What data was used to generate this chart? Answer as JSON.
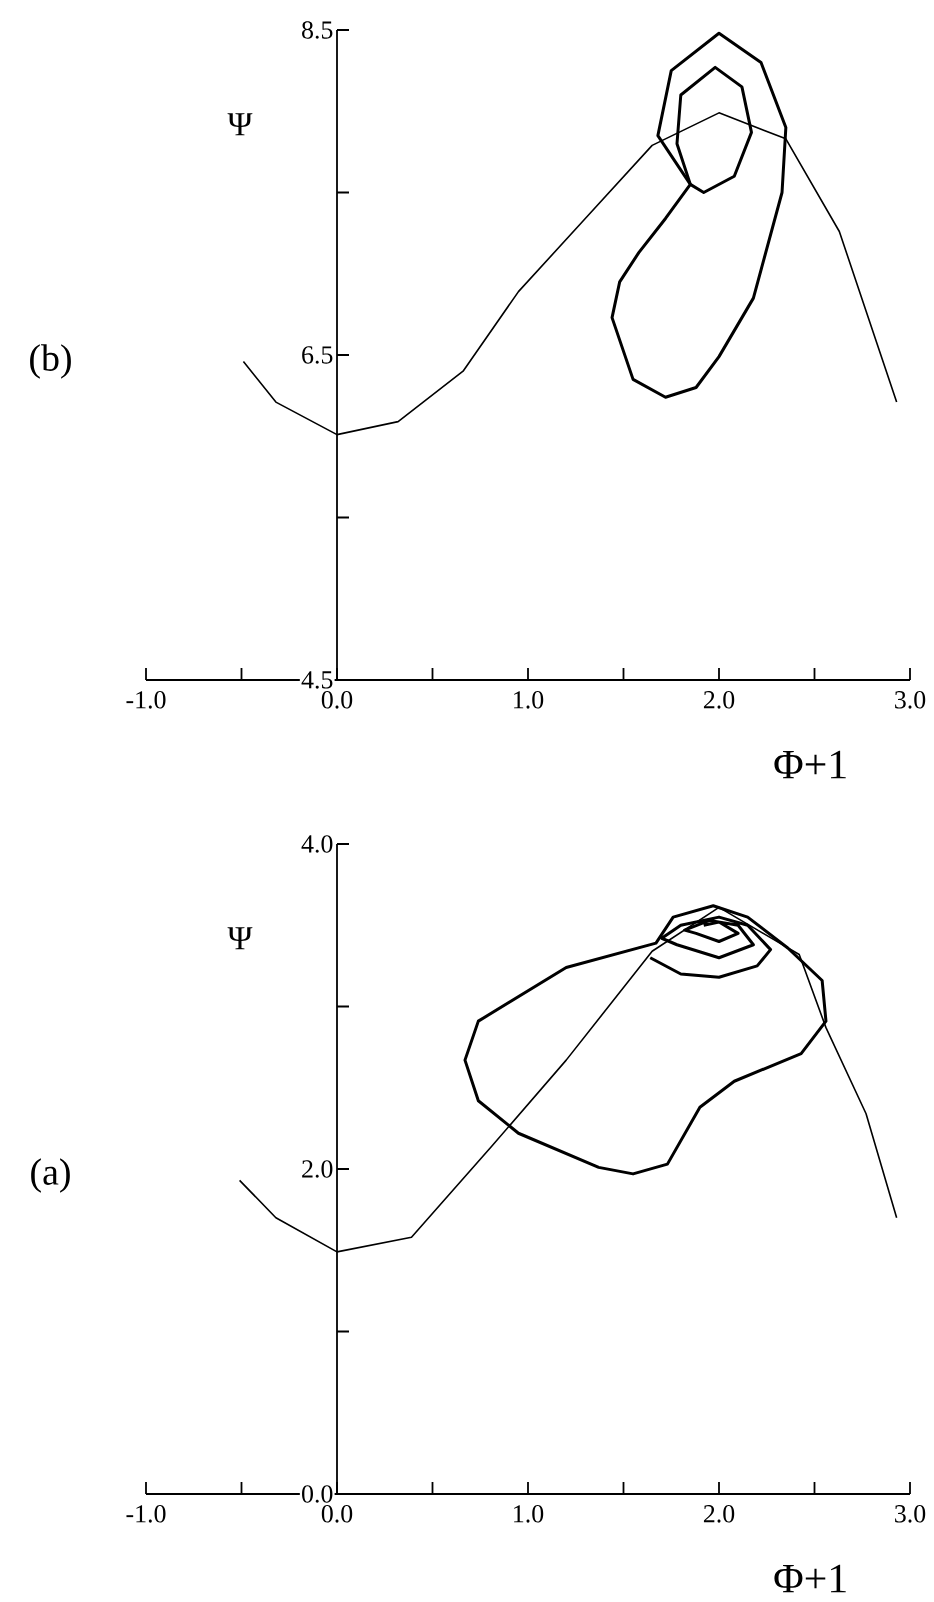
{
  "chart_data": [
    {
      "type": "line",
      "xlabel": "Φ+1",
      "ylabel": "Ψ",
      "annotations": [
        "(b)"
      ],
      "xlim": [
        -1.0,
        3.0
      ],
      "ylim": [
        4.5,
        8.5
      ],
      "xticks": [
        {
          "value": -1.0,
          "label": "-1.0"
        },
        {
          "value": -0.5,
          "label": null
        },
        {
          "value": 0.0,
          "label": "0.0"
        },
        {
          "value": 0.5,
          "label": null
        },
        {
          "value": 1.0,
          "label": "1.0"
        },
        {
          "value": 1.5,
          "label": null
        },
        {
          "value": 2.0,
          "label": "2.0"
        },
        {
          "value": 2.5,
          "label": null
        },
        {
          "value": 3.0,
          "label": "3.0"
        }
      ],
      "yticks": [
        4.5,
        {
          "value": 5.5,
          "label": null
        },
        6.5,
        {
          "value": 7.5,
          "label": null
        },
        8.5
      ],
      "series": [
        {
          "color": "#000000",
          "x": [
            -0.49,
            -0.32,
            0,
            0.32,
            0.66,
            0.95,
            1.3,
            1.65,
            2.0,
            2.35,
            2.63,
            2.93
          ],
          "values": [
            6.46,
            6.21,
            6.01,
            6.09,
            6.4,
            6.89,
            7.34,
            7.79,
            7.99,
            7.83,
            7.26,
            6.21
          ]
        },
        {
          "color": "#000000",
          "x": [
            1.85,
            1.68,
            1.75,
            2.0,
            2.22,
            2.35,
            2.33,
            2.18,
            2.0,
            1.88,
            1.72,
            1.55,
            1.44,
            1.48,
            1.58,
            1.72,
            1.85,
            1.68
          ],
          "values": [
            7.55,
            7.85,
            8.25,
            8.48,
            8.3,
            7.9,
            7.5,
            6.85,
            6.49,
            6.3,
            6.24,
            6.35,
            6.73,
            6.95,
            7.13,
            7.34,
            7.55,
            7.85
          ]
        },
        {
          "color": "#000000",
          "x": [
            1.85,
            1.78,
            1.8,
            1.98,
            2.12,
            2.17,
            2.08,
            1.92,
            1.85,
            1.78
          ],
          "values": [
            7.55,
            7.8,
            8.1,
            8.27,
            8.15,
            7.87,
            7.6,
            7.5,
            7.55,
            7.8
          ]
        }
      ]
    },
    {
      "type": "line",
      "xlabel": "Φ+1",
      "ylabel": "Ψ",
      "annotations": [
        "(a)"
      ],
      "xlim": [
        -1.0,
        3.0
      ],
      "ylim": [
        0.0,
        4.0
      ],
      "xticks": [
        {
          "value": -1.0,
          "label": "-1.0"
        },
        {
          "value": -0.5,
          "label": null
        },
        {
          "value": 0.0,
          "label": "0.0"
        },
        {
          "value": 0.5,
          "label": null
        },
        {
          "value": 1.0,
          "label": "1.0"
        },
        {
          "value": 1.5,
          "label": null
        },
        {
          "value": 2.0,
          "label": "2.0"
        },
        {
          "value": 2.5,
          "label": null
        },
        {
          "value": 3.0,
          "label": "3.0"
        }
      ],
      "yticks": [
        {
          "value": 0.0,
          "label": "0.0"
        },
        {
          "value": 1.0,
          "label": null
        },
        {
          "value": 2.0,
          "label": "2.0"
        },
        {
          "value": 3.0,
          "label": null
        },
        {
          "value": 4.0,
          "label": "4.0"
        }
      ],
      "series": [
        {
          "color": "#000000",
          "x": [
            -0.51,
            -0.32,
            0,
            0.39,
            0.81,
            1.2,
            1.65,
            2.0,
            2.42,
            2.56,
            2.77,
            2.93
          ],
          "values": [
            1.93,
            1.7,
            1.49,
            1.58,
            2.14,
            2.67,
            3.34,
            3.61,
            3.32,
            2.87,
            2.34,
            1.7
          ]
        },
        {
          "color": "#000000",
          "x": [
            1.67,
            1.2,
            0.74,
            0.67,
            0.74,
            0.95,
            1.37,
            1.55,
            1.73,
            1.9,
            2.08,
            2.43,
            2.56,
            2.54,
            2.36,
            2.15,
            1.97,
            1.76,
            1.67,
            1.2
          ],
          "values": [
            3.39,
            3.24,
            2.91,
            2.67,
            2.42,
            2.22,
            2.01,
            1.97,
            2.03,
            2.38,
            2.54,
            2.71,
            2.91,
            3.16,
            3.36,
            3.55,
            3.62,
            3.55,
            3.39,
            3.24
          ]
        },
        {
          "color": "#000000",
          "x": [
            1.64,
            1.8,
            2.0,
            2.2,
            2.27,
            2.15,
            2.0,
            1.8,
            1.7,
            1.78,
            2.0,
            2.18,
            2.1,
            1.95,
            1.82,
            1.88,
            2.0,
            2.1,
            2.0,
            1.92
          ],
          "values": [
            3.3,
            3.2,
            3.18,
            3.25,
            3.35,
            3.5,
            3.55,
            3.5,
            3.42,
            3.38,
            3.3,
            3.38,
            3.5,
            3.53,
            3.47,
            3.45,
            3.4,
            3.45,
            3.52,
            3.5
          ]
        }
      ]
    }
  ]
}
